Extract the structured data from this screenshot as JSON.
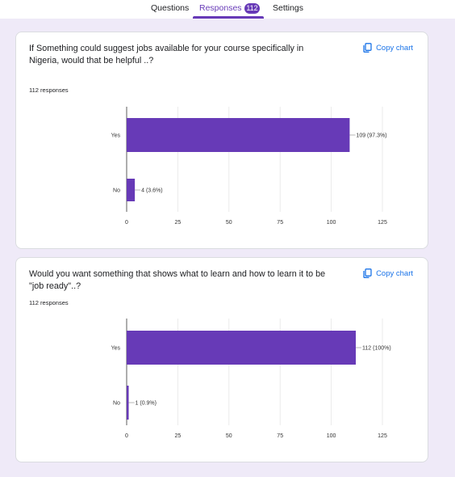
{
  "tabs": {
    "questions": "Questions",
    "responses": "Responses",
    "responses_count": "112",
    "settings": "Settings"
  },
  "colors": {
    "accent": "#673ab7",
    "link": "#1a73e8",
    "bar": "#673ab7"
  },
  "cards": [
    {
      "title": "If Something could suggest jobs available for your course  specifically in Nigeria,  would that be helpful ..?",
      "copy_label": "Copy chart",
      "responses": "112 responses"
    },
    {
      "title": "Would you want something that shows what to learn and how to learn it to be \"job ready\"..?",
      "copy_label": "Copy chart",
      "responses": "112 responses"
    }
  ],
  "chart_data": [
    {
      "type": "bar",
      "orientation": "horizontal",
      "categories": [
        "Yes",
        "No"
      ],
      "values": [
        109,
        4
      ],
      "data_labels": [
        "109 (97.3%)",
        "4 (3.6%)"
      ],
      "xticks": [
        "0",
        "25",
        "50",
        "75",
        "100",
        "125"
      ],
      "xlim": [
        0,
        125
      ],
      "grid": true
    },
    {
      "type": "bar",
      "orientation": "horizontal",
      "categories": [
        "Yes",
        "No"
      ],
      "values": [
        112,
        1
      ],
      "data_labels": [
        "112 (100%)",
        "1 (0.9%)"
      ],
      "xticks": [
        "0",
        "25",
        "50",
        "75",
        "100",
        "125"
      ],
      "xlim": [
        0,
        125
      ],
      "grid": true
    }
  ]
}
